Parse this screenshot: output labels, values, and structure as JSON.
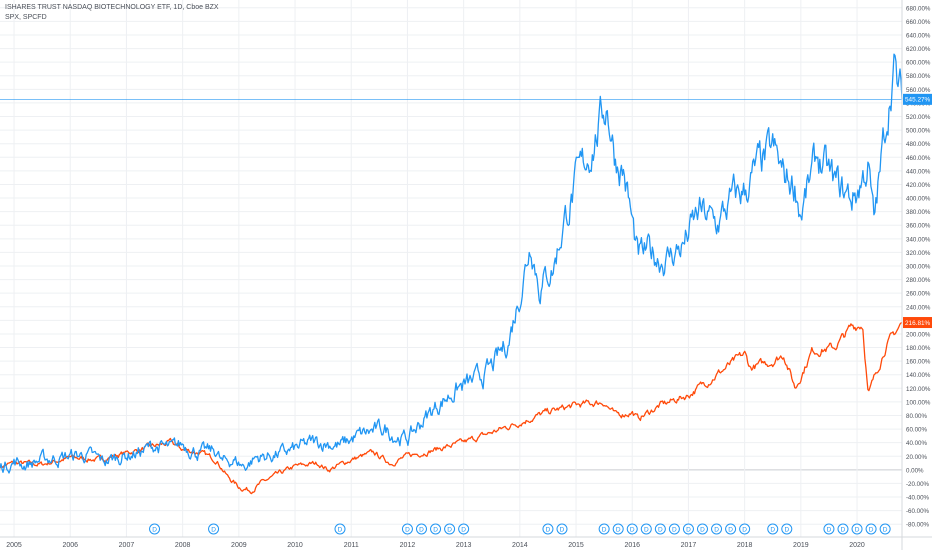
{
  "legend": {
    "main_series": "ISHARES TRUST NASDAQ BIOTECHNOLOGY ETF, 1D, Cboe BZX",
    "compare_series": "SPX, SPCFD"
  },
  "colors": {
    "ibb": "#2196f3",
    "spx": "#ff4a0a",
    "grid": "#eef0f3",
    "axis_text": "#4a4f58",
    "zero_line": "#c9ccd1",
    "dividend_marker": "#2196f3"
  },
  "price_labels": {
    "ibb_last": "545.27%",
    "spx_last": "216.81%"
  },
  "dividend_marker_label": "D",
  "chart_data": {
    "type": "line",
    "y_unit": "percent change",
    "ylim": [
      -90,
      690
    ],
    "y_ticks": [
      "-80.00%",
      "-60.00%",
      "-40.00%",
      "-20.00%",
      "0.00%",
      "20.00%",
      "40.00%",
      "60.00%",
      "80.00%",
      "100.00%",
      "120.00%",
      "140.00%",
      "160.00%",
      "180.00%",
      "200.00%",
      "220.00%",
      "240.00%",
      "260.00%",
      "280.00%",
      "300.00%",
      "320.00%",
      "340.00%",
      "360.00%",
      "380.00%",
      "400.00%",
      "420.00%",
      "440.00%",
      "460.00%",
      "480.00%",
      "500.00%",
      "520.00%",
      "540.00%",
      "560.00%",
      "580.00%",
      "600.00%",
      "620.00%",
      "640.00%",
      "660.00%",
      "680.00%"
    ],
    "x_ticks": [
      "2005",
      "2006",
      "2007",
      "2008",
      "2009",
      "2010",
      "2011",
      "2012",
      "2013",
      "2014",
      "2015",
      "2016",
      "2017",
      "2018",
      "2019",
      "2020"
    ],
    "xlim": [
      2004.75,
      2020.8
    ],
    "grid": true,
    "series": [
      {
        "name": "ISHARES TRUST NASDAQ BIOTECHNOLOGY ETF",
        "x": [
          2004.75,
          2005.0,
          2005.2,
          2005.5,
          2005.8,
          2006.0,
          2006.3,
          2006.6,
          2006.9,
          2007.2,
          2007.5,
          2007.8,
          2008.0,
          2008.3,
          2008.6,
          2008.7,
          2008.9,
          2009.1,
          2009.3,
          2009.5,
          2009.8,
          2010.0,
          2010.3,
          2010.6,
          2010.8,
          2011.0,
          2011.3,
          2011.6,
          2011.8,
          2012.0,
          2012.3,
          2012.6,
          2012.9,
          2013.2,
          2013.5,
          2013.8,
          2014.0,
          2014.2,
          2014.35,
          2014.6,
          2014.8,
          2015.0,
          2015.3,
          2015.55,
          2015.7,
          2015.85,
          2016.1,
          2016.3,
          2016.6,
          2016.9,
          2017.2,
          2017.5,
          2017.8,
          2018.0,
          2018.2,
          2018.5,
          2018.7,
          2018.9,
          2019.0,
          2019.3,
          2019.6,
          2019.9,
          2020.0,
          2020.2,
          2020.3,
          2020.5,
          2020.65,
          2020.72,
          2020.8
        ],
        "values": [
          5,
          12,
          8,
          15,
          18,
          20,
          22,
          12,
          20,
          25,
          35,
          30,
          38,
          25,
          28,
          10,
          15,
          5,
          18,
          20,
          25,
          30,
          40,
          40,
          35,
          45,
          55,
          60,
          50,
          45,
          75,
          100,
          120,
          130,
          150,
          190,
          260,
          340,
          270,
          300,
          370,
          420,
          480,
          540,
          460,
          440,
          310,
          320,
          310,
          330,
          380,
          360,
          400,
          410,
          440,
          470,
          430,
          420,
          380,
          460,
          420,
          400,
          410,
          450,
          360,
          500,
          600,
          560,
          545.27
        ]
      },
      {
        "name": "SPX",
        "x": [
          2004.75,
          2005.0,
          2005.5,
          2006.0,
          2006.5,
          2007.0,
          2007.5,
          2007.8,
          2008.0,
          2008.3,
          2008.6,
          2008.8,
          2009.0,
          2009.2,
          2009.5,
          2010.0,
          2010.4,
          2010.6,
          2011.0,
          2011.4,
          2011.7,
          2012.0,
          2012.5,
          2013.0,
          2013.5,
          2014.0,
          2014.5,
          2015.0,
          2015.5,
          2015.7,
          2016.0,
          2016.1,
          2016.5,
          2017.0,
          2017.5,
          2018.0,
          2018.1,
          2018.5,
          2018.7,
          2018.9,
          2019.2,
          2019.6,
          2019.9,
          2020.1,
          2020.2,
          2020.5,
          2020.8
        ],
        "values": [
          5,
          10,
          8,
          18,
          15,
          25,
          35,
          40,
          30,
          25,
          15,
          -10,
          -25,
          -30,
          -15,
          5,
          10,
          0,
          15,
          25,
          10,
          20,
          30,
          40,
          55,
          70,
          85,
          95,
          100,
          80,
          85,
          75,
          95,
          110,
          140,
          170,
          150,
          160,
          170,
          120,
          175,
          180,
          210,
          215,
          110,
          180,
          216.81
        ]
      }
    ],
    "dividend_markers_x": [
      2007.5,
      2008.55,
      2010.8,
      2012.0,
      2012.25,
      2012.5,
      2012.75,
      2013.0,
      2014.5,
      2014.75,
      2015.5,
      2015.75,
      2016.0,
      2016.25,
      2016.5,
      2016.75,
      2017.0,
      2017.25,
      2017.5,
      2017.75,
      2018.0,
      2018.5,
      2018.75,
      2019.5,
      2019.75,
      2020.0,
      2020.25,
      2020.5
    ]
  }
}
